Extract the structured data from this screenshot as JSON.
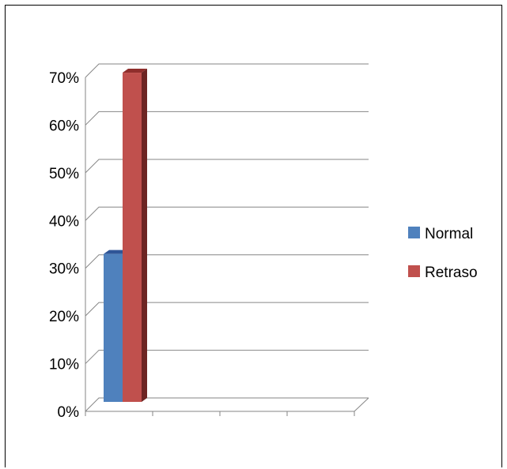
{
  "chart_data": {
    "type": "bar",
    "categories": [
      ""
    ],
    "series": [
      {
        "name": "Normal",
        "values": [
          0.31
        ]
      },
      {
        "name": "Retraso",
        "values": [
          0.69
        ]
      }
    ],
    "ylim": [
      0,
      0.7
    ],
    "yticks": [
      "0%",
      "10%",
      "20%",
      "30%",
      "40%",
      "50%",
      "60%",
      "70%"
    ],
    "grid": true,
    "legend": "right",
    "colors": {
      "Normal": "#4f81bd",
      "Retraso": "#c0504d"
    }
  }
}
